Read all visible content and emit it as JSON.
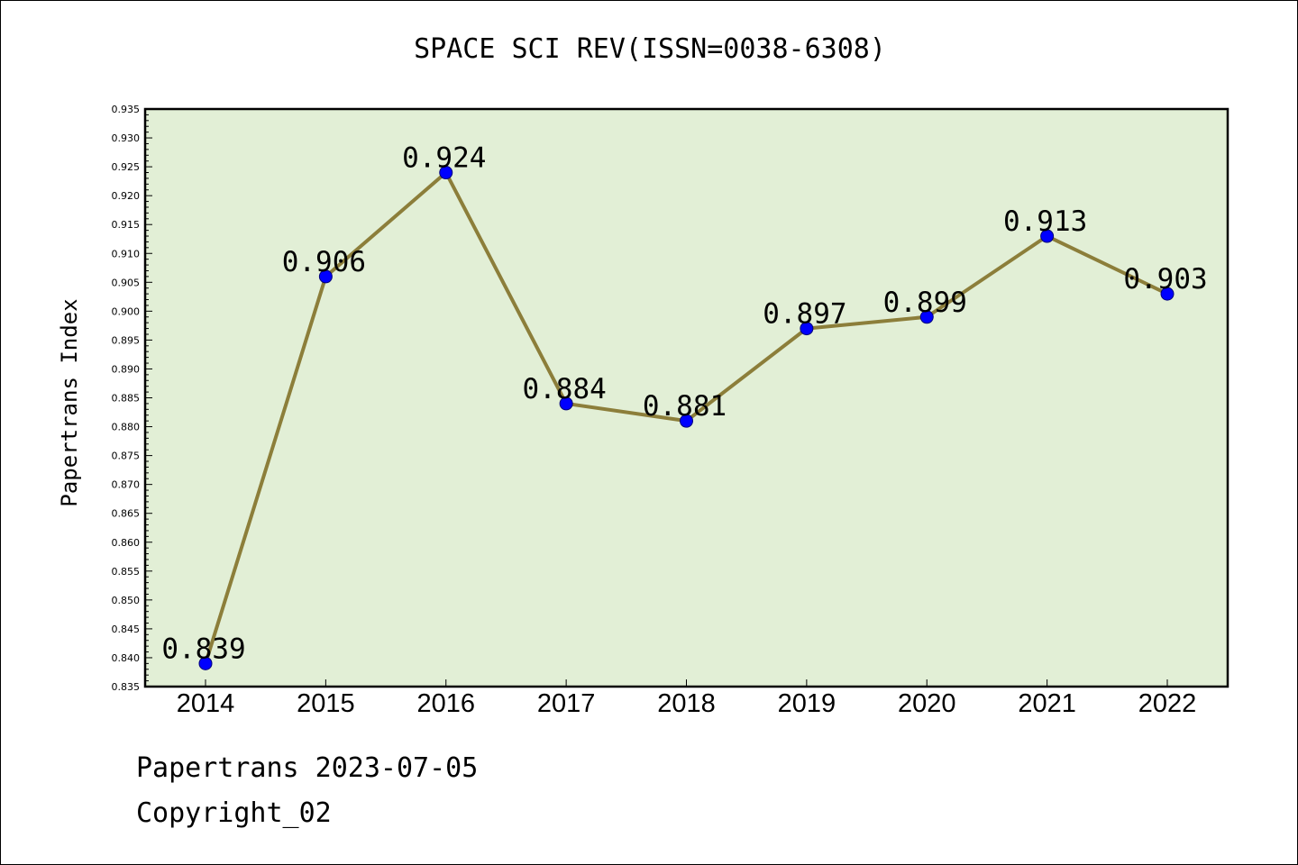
{
  "footer": {
    "date_line": "Papertrans 2023-07-05",
    "copyright": "Copyright_02"
  },
  "colors": {
    "plot_background": "#e2efd6",
    "line": "#8c7e3a",
    "marker": "#0000ff"
  },
  "chart_data": {
    "type": "line",
    "title": "SPACE SCI REV(ISSN=0038-6308)",
    "xlabel": "",
    "ylabel": "Papertrans Index",
    "categories": [
      "2014",
      "2015",
      "2016",
      "2017",
      "2018",
      "2019",
      "2020",
      "2021",
      "2022"
    ],
    "series": [
      {
        "values": [
          0.839,
          0.906,
          0.924,
          0.884,
          0.881,
          0.897,
          0.899,
          0.913,
          0.903
        ]
      }
    ],
    "data_labels": [
      "0.839",
      "0.906",
      "0.924",
      "0.884",
      "0.881",
      "0.897",
      "0.899",
      "0.913",
      "0.903"
    ],
    "ylim": [
      0.835,
      0.935
    ],
    "ytick_step": 0.005,
    "ytick_labels": [
      "0.835",
      "0.840",
      "0.845",
      "0.850",
      "0.855",
      "0.860",
      "0.865",
      "0.870",
      "0.875",
      "0.880",
      "0.885",
      "0.890",
      "0.895",
      "0.900",
      "0.905",
      "0.910",
      "0.915",
      "0.920",
      "0.925",
      "0.930",
      "0.935"
    ],
    "grid": false,
    "legend": "none"
  }
}
